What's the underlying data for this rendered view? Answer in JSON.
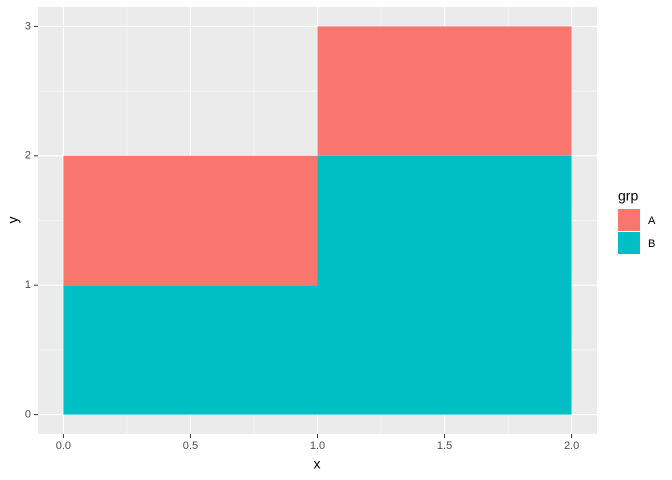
{
  "chart_data": {
    "type": "histogram",
    "bins": [
      0,
      1,
      2
    ],
    "series": [
      {
        "name": "A",
        "color": "#F8766D",
        "values": [
          1,
          1
        ]
      },
      {
        "name": "B",
        "color": "#00BFC4",
        "values": [
          1,
          2
        ]
      }
    ],
    "x_label": "x",
    "y_label": "y",
    "legend_title": "grp",
    "xlim": [
      -0.1,
      2.1
    ],
    "xticks": [
      {
        "value": 0,
        "label": "0.0"
      },
      0.5,
      {
        "value": 1,
        "label": "1.0"
      },
      1.5,
      {
        "value": 2,
        "label": "2.0"
      }
    ],
    "ylim": [
      -0.15,
      3.15
    ],
    "yticks": [
      0,
      1,
      2,
      3
    ],
    "grid": true,
    "legend": "right",
    "stacked": true
  }
}
